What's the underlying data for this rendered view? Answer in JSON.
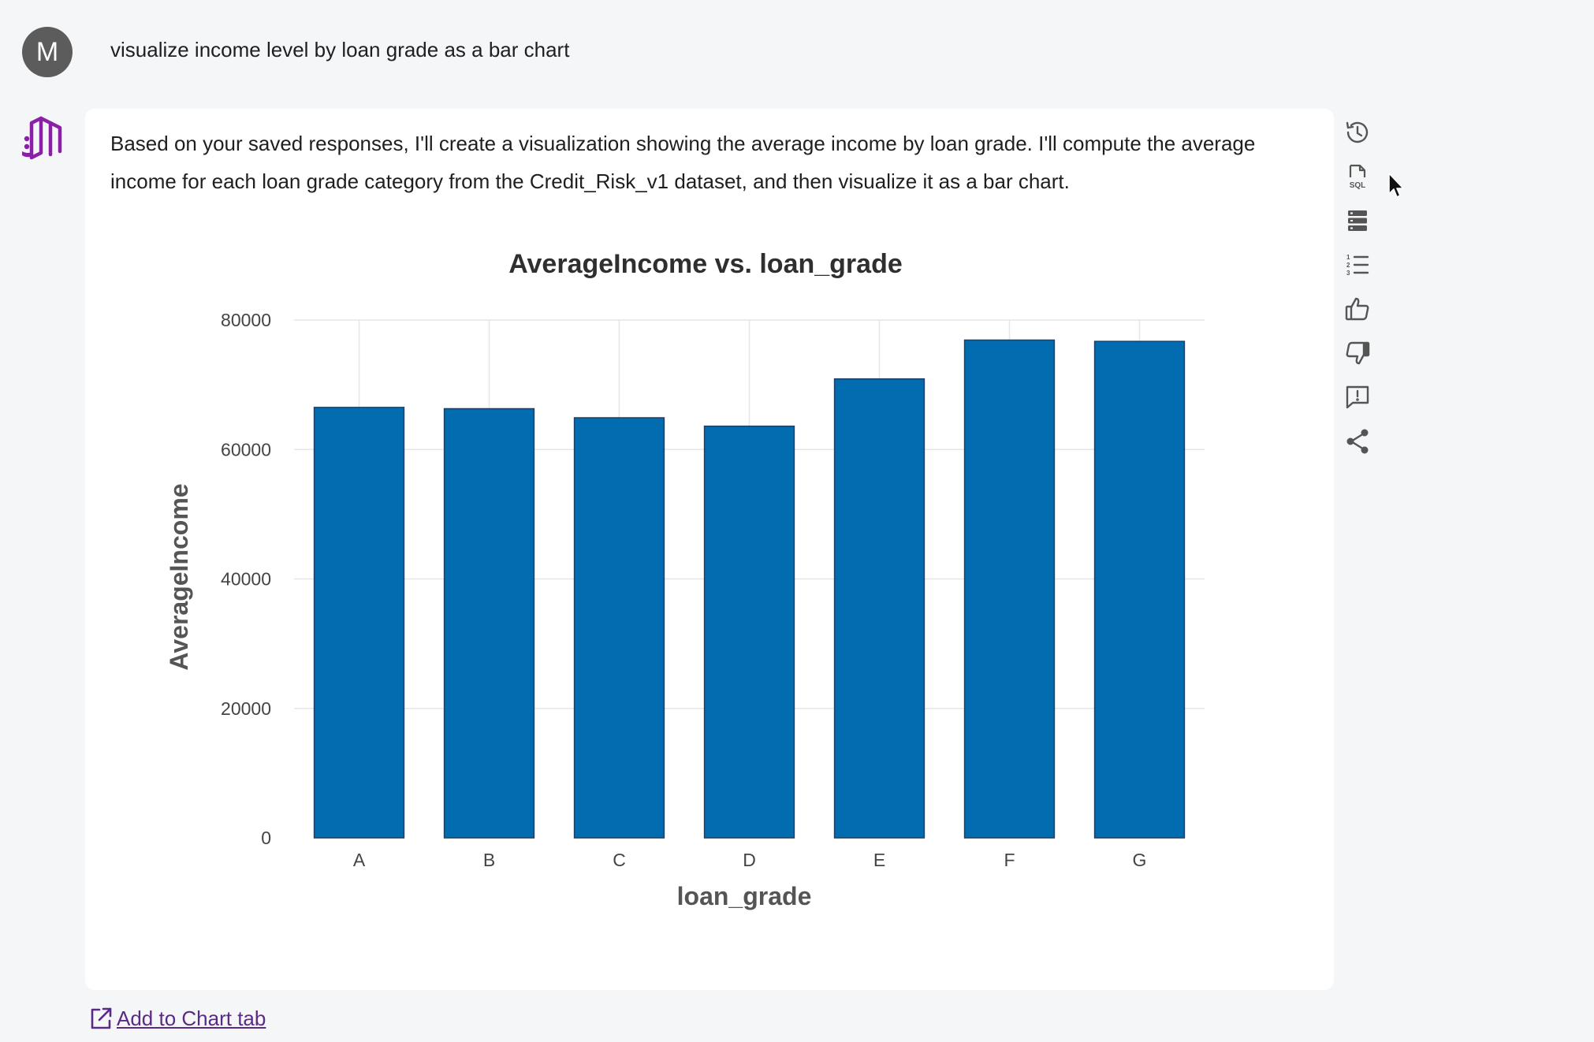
{
  "user": {
    "avatar_initial": "M",
    "message": "visualize income level by loan grade as a bar chart"
  },
  "assistant": {
    "logo_icon": "assistant-logo-icon",
    "message": "Based on your saved responses, I'll create a visualization showing the average income by loan grade. I'll compute the average income for each loan grade category from the Credit_Risk_v1 dataset, and then visualize it as a bar chart."
  },
  "side_actions": [
    {
      "name": "history",
      "icon": "history-icon"
    },
    {
      "name": "sql",
      "icon": "sql-file-icon"
    },
    {
      "name": "data",
      "icon": "database-icon"
    },
    {
      "name": "steps",
      "icon": "numbered-list-icon"
    },
    {
      "name": "like",
      "icon": "thumbs-up-icon"
    },
    {
      "name": "dislike",
      "icon": "thumbs-down-icon"
    },
    {
      "name": "feedback",
      "icon": "feedback-icon"
    },
    {
      "name": "share",
      "icon": "share-icon"
    }
  ],
  "footer": {
    "add_chart_label": "Add to Chart tab"
  },
  "colors": {
    "bar": "#026cb0",
    "link": "#5b2a86",
    "logo": "#8b1fa8"
  },
  "chart_data": {
    "type": "bar",
    "title": "AverageIncome vs. loan_grade",
    "xlabel": "loan_grade",
    "ylabel": "AverageIncome",
    "categories": [
      "A",
      "B",
      "C",
      "D",
      "E",
      "F",
      "G"
    ],
    "values": [
      66500,
      66300,
      64900,
      63600,
      70900,
      76900,
      76700
    ],
    "ylim": [
      0,
      80000
    ],
    "yticks": [
      0,
      20000,
      40000,
      60000,
      80000
    ],
    "grid": true,
    "legend": "none"
  }
}
